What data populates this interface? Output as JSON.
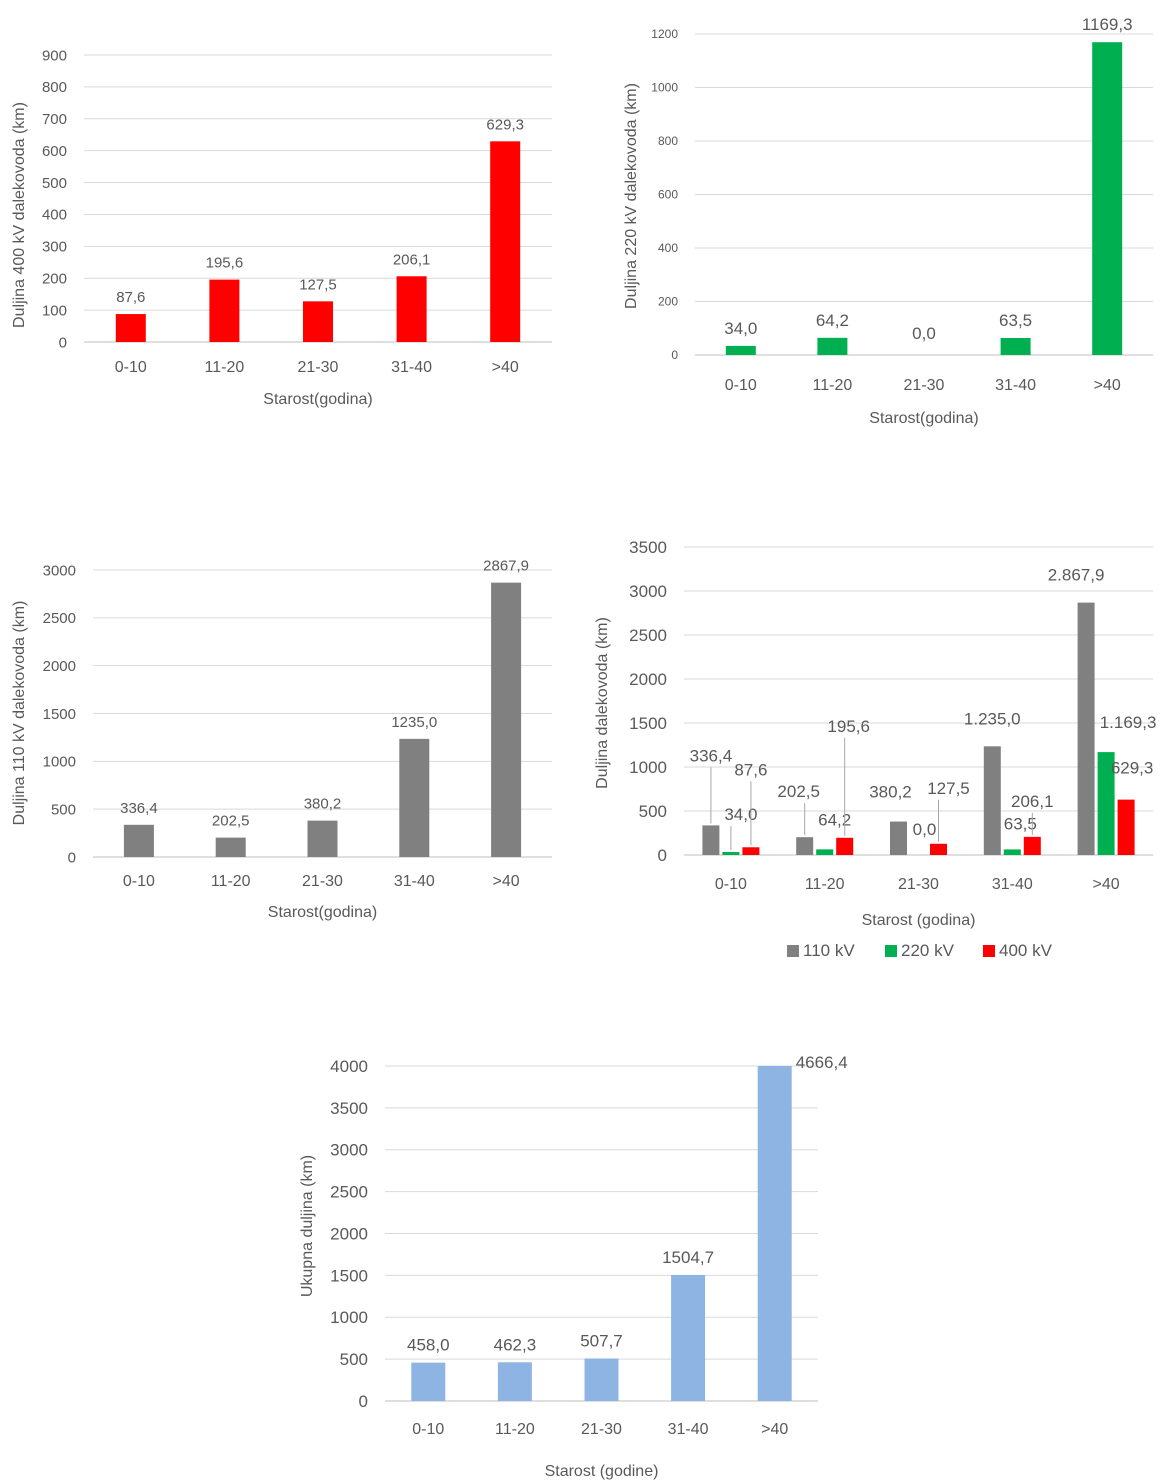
{
  "chart_data": [
    {
      "type": "bar",
      "ylabel": "Duljina 400 kV dalekovoda (km)",
      "xlabel": "Starost(godina)",
      "categories": [
        "0-10",
        "11-20",
        "21-30",
        "31-40",
        ">40"
      ],
      "values": [
        87.6,
        195.6,
        127.5,
        206.1,
        629.3
      ],
      "value_labels": [
        "87,6",
        "195,6",
        "127,5",
        "206,1",
        "629,3"
      ],
      "ylim": [
        0,
        900
      ],
      "yticks": [
        "0",
        "100",
        "200",
        "300",
        "400",
        "500",
        "600",
        "700",
        "800",
        "900"
      ],
      "color": "#ff0000",
      "grid": true
    },
    {
      "type": "bar",
      "ylabel": "Duljina 220 kV dalekovoda (km)",
      "xlabel": "Starost(godina)",
      "categories": [
        "0-10",
        "11-20",
        "21-30",
        "31-40",
        ">40"
      ],
      "values": [
        34.0,
        64.2,
        0.0,
        63.5,
        1169.3
      ],
      "value_labels": [
        "34,0",
        "64,2",
        "0,0",
        "63,5",
        "1169,3"
      ],
      "ylim": [
        0,
        1200
      ],
      "yticks": [
        "0",
        "200",
        "400",
        "600",
        "800",
        "1000",
        "1200"
      ],
      "color": "#00b050",
      "grid": true
    },
    {
      "type": "bar",
      "ylabel": "Duljina 110 kV dalekovoda (km)",
      "xlabel": "Starost(godina)",
      "categories": [
        "0-10",
        "11-20",
        "21-30",
        "31-40",
        ">40"
      ],
      "values": [
        336.4,
        202.5,
        380.2,
        1235.0,
        2867.9
      ],
      "value_labels": [
        "336,4",
        "202,5",
        "380,2",
        "1235,0",
        "2867,9"
      ],
      "ylim": [
        0,
        3000
      ],
      "yticks": [
        "0",
        "500",
        "1000",
        "1500",
        "2000",
        "2500",
        "3000"
      ],
      "color": "#808080",
      "grid": true
    },
    {
      "type": "bar",
      "ylabel": "Duljina dalekovoda (km)",
      "xlabel": "Starost (godina)",
      "categories": [
        "0-10",
        "11-20",
        "21-30",
        "31-40",
        ">40"
      ],
      "ylim": [
        0,
        3500
      ],
      "yticks": [
        "0",
        "500",
        "1000",
        "1500",
        "2000",
        "2500",
        "3000",
        "3500"
      ],
      "legend": "bottom",
      "grid": true,
      "series": [
        {
          "name": "110 kV",
          "color": "#808080",
          "values": [
            336.4,
            202.5,
            380.2,
            1235.0,
            2867.9
          ],
          "value_labels": [
            "336,4",
            "202,5",
            "380,2",
            "1.235,0",
            "2.867,9"
          ]
        },
        {
          "name": "220 kV",
          "color": "#00b050",
          "values": [
            34.0,
            64.2,
            0.0,
            63.5,
            1169.3
          ],
          "value_labels": [
            "34,0",
            "64,2",
            "0,0",
            "63,5",
            "1.169,3"
          ]
        },
        {
          "name": "400 kV",
          "color": "#ff0000",
          "values": [
            87.6,
            195.6,
            127.5,
            206.1,
            629.3
          ],
          "value_labels": [
            "87,6",
            "195,6",
            "127,5",
            "206,1",
            "629,3"
          ]
        }
      ]
    },
    {
      "type": "bar",
      "ylabel": "Ukupna duljina (km)",
      "xlabel": "Starost (godine)",
      "categories": [
        "0-10",
        "11-20",
        "21-30",
        "31-40",
        ">40"
      ],
      "values": [
        458.0,
        462.3,
        507.7,
        1504.7,
        4666.4
      ],
      "value_labels": [
        "458,0",
        "462,3",
        "507,7",
        "1504,7",
        "4666,4"
      ],
      "ylim": [
        0,
        4000
      ],
      "yticks": [
        "0",
        "500",
        "1000",
        "1500",
        "2000",
        "2500",
        "3000",
        "3500",
        "4000"
      ],
      "color": "#8eb4e3",
      "grid": true
    }
  ]
}
